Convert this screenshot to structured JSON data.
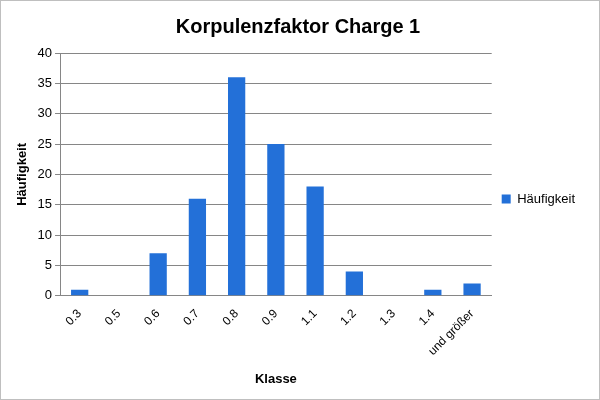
{
  "chart_data": {
    "type": "bar",
    "title": "Korpulenzfaktor Charge 1",
    "x_label": "Klasse",
    "y_label": "Häufigkeit",
    "categories": [
      "0.3",
      "0.5",
      "0.6",
      "0.7",
      "0.8",
      "0.9",
      "1.1",
      "1.2",
      "1.3",
      "1.4",
      "und größer"
    ],
    "series": [
      {
        "name": "Häufigkeit",
        "color": "#2370d8",
        "values": [
          1,
          0,
          7,
          16,
          36,
          25,
          18,
          4,
          0,
          1,
          2
        ]
      }
    ],
    "ylim": [
      0,
      40
    ],
    "yticks": [
      0,
      5,
      10,
      15,
      20,
      25,
      30,
      35,
      40
    ],
    "grid": true,
    "legend": "right"
  }
}
